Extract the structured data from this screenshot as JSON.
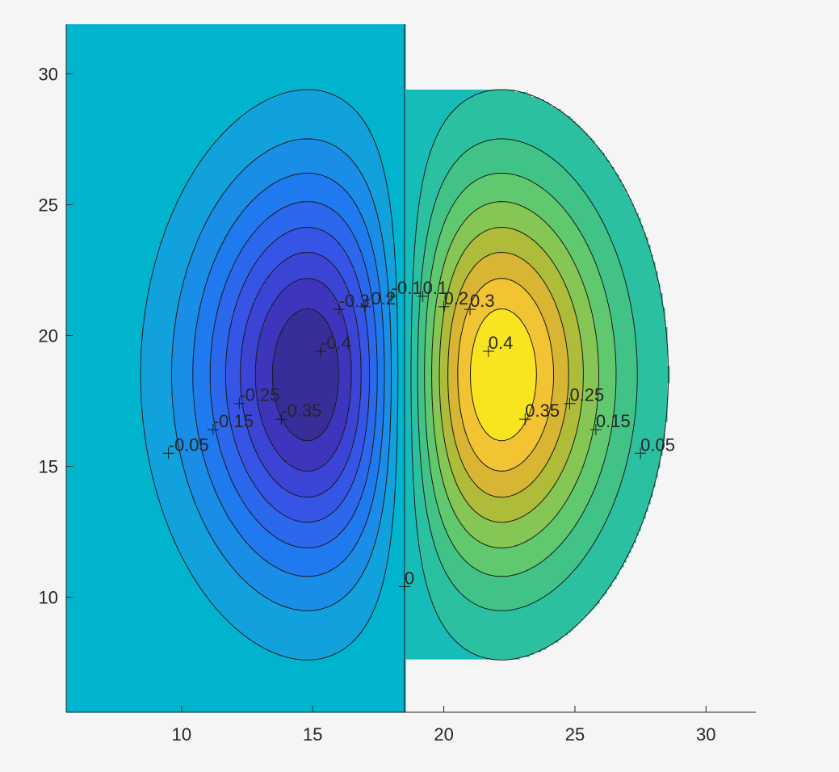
{
  "chart_data": {
    "type": "contour",
    "title": "",
    "xlabel": "",
    "ylabel": "",
    "xlim": [
      5.6,
      31.9
    ],
    "ylim": [
      5.6,
      31.9
    ],
    "x_ticks": [
      10,
      15,
      20,
      25,
      30
    ],
    "y_ticks": [
      10,
      15,
      20,
      25,
      30
    ],
    "grid": false,
    "colormap": "parula",
    "field": {
      "description_of_function": "dipole: amplitude * (x - cx) * exp(-((x-cx)^2/(2*sx^2) + (y-cy)^2/(2*sy^2)))",
      "center_x": 18.5,
      "center_y": 18.5,
      "amplitude_peak": 0.45,
      "peak_x": 22.2,
      "trough_x": 14.8,
      "sigma_x": 3.7,
      "sigma_y": 5.2
    },
    "levels": [
      -0.4,
      -0.35,
      -0.3,
      -0.25,
      -0.2,
      -0.15,
      -0.1,
      -0.05,
      0,
      0.05,
      0.1,
      0.15,
      0.2,
      0.25,
      0.3,
      0.35,
      0.4
    ],
    "contour_labels": [
      {
        "text": "-0.05",
        "x": 9.5,
        "y": 15.5
      },
      {
        "text": "-0.15",
        "x": 11.2,
        "y": 16.4
      },
      {
        "text": "-0.25",
        "x": 12.2,
        "y": 17.4
      },
      {
        "text": "-0.35",
        "x": 13.8,
        "y": 16.8
      },
      {
        "text": "-0.4",
        "x": 15.3,
        "y": 19.4
      },
      {
        "text": "-0.3",
        "x": 16.0,
        "y": 21.0
      },
      {
        "text": "-0.2",
        "x": 17.0,
        "y": 21.1
      },
      {
        "text": "-0.1",
        "x": 18.0,
        "y": 21.5
      },
      {
        "text": "0.1",
        "x": 19.2,
        "y": 21.5
      },
      {
        "text": "0.2",
        "x": 20.0,
        "y": 21.1
      },
      {
        "text": "0.3",
        "x": 21.0,
        "y": 21.0
      },
      {
        "text": "0.4",
        "x": 21.7,
        "y": 19.4
      },
      {
        "text": "0.35",
        "x": 23.1,
        "y": 16.8
      },
      {
        "text": "0.25",
        "x": 24.8,
        "y": 17.4
      },
      {
        "text": "0.15",
        "x": 25.8,
        "y": 16.4
      },
      {
        "text": "0.05",
        "x": 27.5,
        "y": 15.5
      },
      {
        "text": "0",
        "x": 18.5,
        "y": 10.4
      }
    ]
  }
}
